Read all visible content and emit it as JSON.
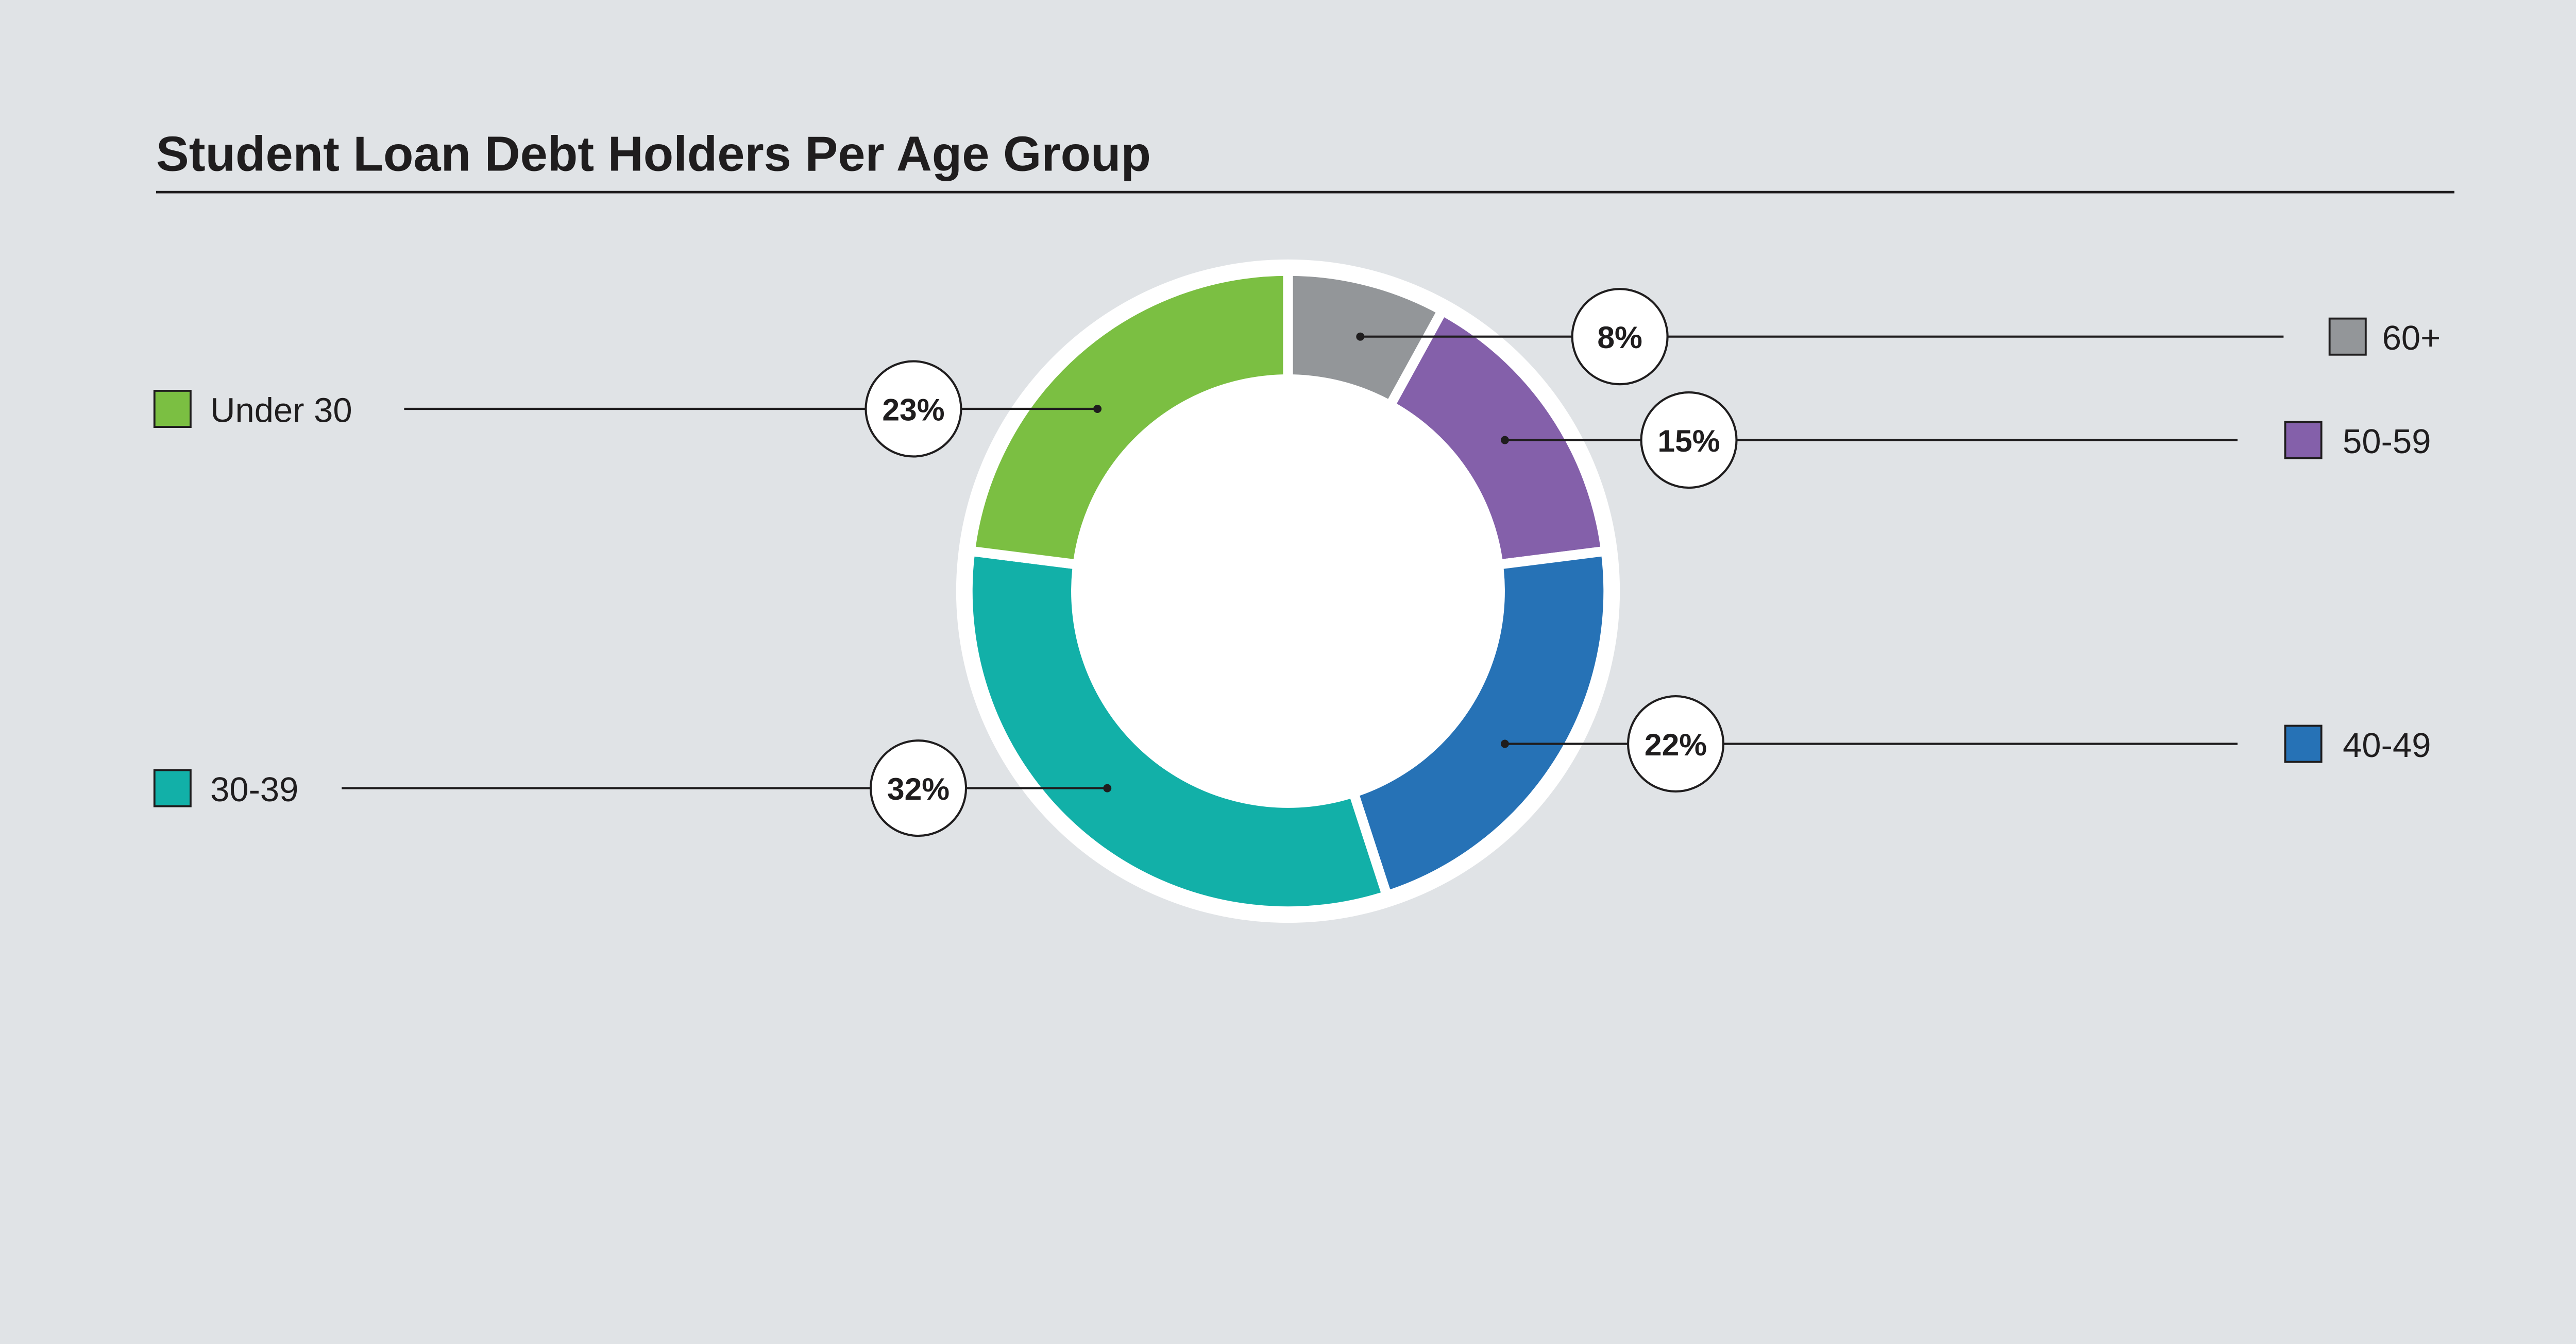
{
  "chart_data": {
    "type": "pie",
    "variant": "donut",
    "title": "Student Loan Debt Holders Per Age Group",
    "legend_placement": "sides",
    "slices": [
      {
        "label": "60+",
        "value": 8,
        "display": "8%",
        "color": "#939699"
      },
      {
        "label": "50-59",
        "value": 15,
        "display": "15%",
        "color": "#8460aa"
      },
      {
        "label": "40-49",
        "value": 22,
        "display": "22%",
        "color": "#2672b6"
      },
      {
        "label": "30-39",
        "value": 32,
        "display": "32%",
        "color": "#12b0a8"
      },
      {
        "label": "Under 30",
        "value": 23,
        "display": "23%",
        "color": "#7bbf42"
      }
    ]
  },
  "background_color": "#e0e3e6"
}
